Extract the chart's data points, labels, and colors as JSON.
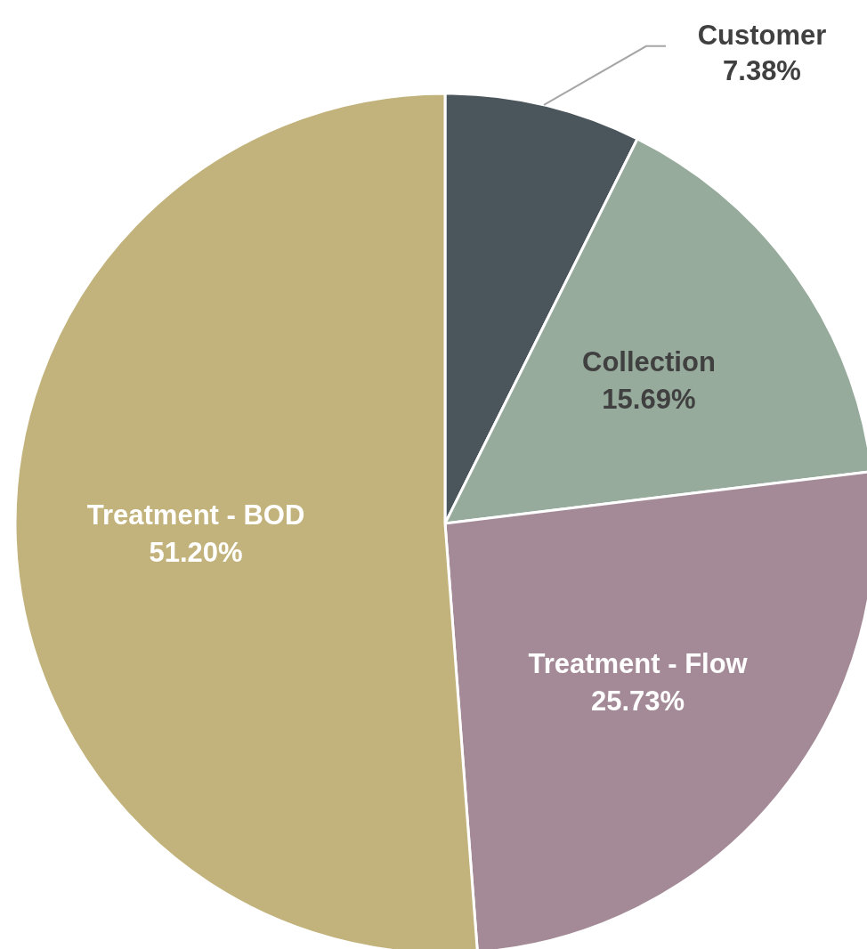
{
  "chart_data": {
    "type": "pie",
    "categories": [
      "Customer",
      "Collection",
      "Treatment - Flow",
      "Treatment - BOD"
    ],
    "values": [
      7.38,
      15.69,
      25.73,
      51.2
    ],
    "value_labels": [
      "7.38%",
      "15.69%",
      "25.73%",
      "51.20%"
    ],
    "colors": [
      "#4b565c",
      "#97ab9d",
      "#a38a96",
      "#c2b27b"
    ],
    "legend": false
  }
}
